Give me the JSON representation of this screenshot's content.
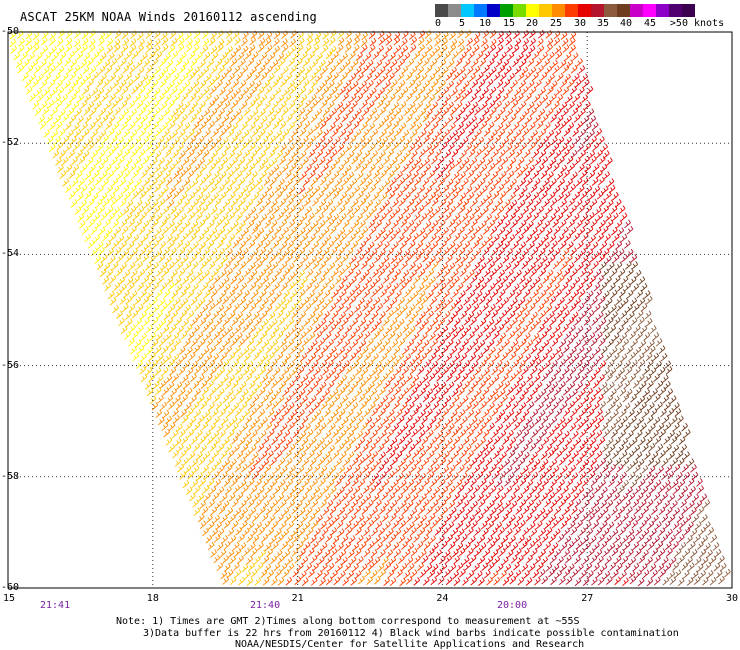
{
  "title": "ASCAT 25KM NOAA Winds 20160112 ascending",
  "legend": {
    "labels": [
      "0",
      "5",
      "10",
      "15",
      "20",
      "25",
      "30",
      "35",
      "40",
      "45",
      ">50 knots"
    ],
    "colors": [
      "#4a4a4a",
      "#8c8c8c",
      "#00c8ff",
      "#0078ff",
      "#0000c8",
      "#00a000",
      "#78dc00",
      "#ffff00",
      "#ffc800",
      "#ff8c00",
      "#ff3c00",
      "#e60000",
      "#b4142d",
      "#8c5a3c",
      "#6e3c1e",
      "#c800c8",
      "#ff00ff",
      "#8c00c8",
      "#50006e",
      "#3c0050"
    ]
  },
  "map": {
    "lat_labels": [
      "-50",
      "-52",
      "-54",
      "-56",
      "-58",
      "-60"
    ],
    "lon_labels": [
      "15",
      "18",
      "21",
      "24",
      "27",
      "30"
    ],
    "time_labels": [
      "21:41",
      "21:40",
      "20:00"
    ],
    "lat_range": [
      -60,
      -50
    ],
    "lon_range": [
      15,
      30
    ],
    "grid": "dotted",
    "barb_palette": [
      "#ffff00",
      "#ffc800",
      "#ff8c00",
      "#ff3c00",
      "#e60000",
      "#b4142d",
      "#8c5a3c",
      "#6e3c1e"
    ]
  },
  "notes": {
    "line1": "Note: 1) Times are GMT 2)Times along bottom correspond to measurement at ~55S",
    "line2": "3)Data buffer is 22 hrs from 20160112 4) Black wind barbs indicate possible contamination",
    "line3": "NOAA/NESDIS/Center for Satellite Applications and Research"
  }
}
